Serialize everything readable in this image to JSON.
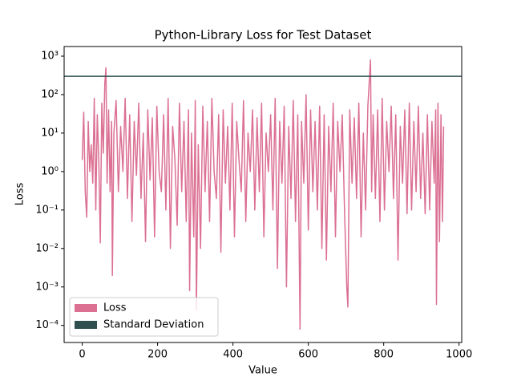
{
  "chart_data": {
    "type": "line",
    "title": "Python-Library Loss for Test Dataset",
    "x_label": "Value",
    "y_label": "Loss",
    "log_y": true,
    "xlim": [
      -48,
      1007
    ],
    "xticks": [
      0,
      200,
      400,
      600,
      800,
      1000
    ],
    "ylim": [
      3.6e-05,
      1780
    ],
    "yticks": [
      {
        "value": 0.0001,
        "label": "10⁻⁴"
      },
      {
        "value": 0.001,
        "label": "10⁻³"
      },
      {
        "value": 0.01,
        "label": "10⁻²"
      },
      {
        "value": 0.1,
        "label": "10⁻¹"
      },
      {
        "value": 1,
        "label": "10⁰"
      },
      {
        "value": 10,
        "label": "10¹"
      },
      {
        "value": 100,
        "label": "10²"
      },
      {
        "value": 1000,
        "label": "10³"
      }
    ],
    "legend": "lower left",
    "x": [
      0,
      4,
      8,
      12,
      16,
      20,
      24,
      28,
      32,
      36,
      40,
      44,
      48,
      52,
      56,
      60,
      63,
      66,
      70,
      74,
      78,
      80,
      84,
      90,
      96,
      102,
      108,
      114,
      120,
      126,
      132,
      138,
      144,
      150,
      156,
      162,
      168,
      174,
      180,
      186,
      192,
      198,
      204,
      210,
      216,
      222,
      228,
      234,
      240,
      246,
      252,
      258,
      264,
      270,
      276,
      282,
      285,
      290,
      296,
      300,
      303,
      308,
      314,
      320,
      326,
      332,
      338,
      344,
      350,
      356,
      362,
      368,
      374,
      380,
      386,
      392,
      398,
      404,
      410,
      416,
      422,
      428,
      434,
      440,
      446,
      452,
      458,
      464,
      470,
      476,
      482,
      488,
      494,
      500,
      506,
      512,
      518,
      524,
      530,
      536,
      542,
      548,
      554,
      560,
      566,
      572,
      578,
      582,
      588,
      594,
      600,
      606,
      612,
      618,
      624,
      630,
      636,
      642,
      648,
      654,
      660,
      666,
      672,
      678,
      684,
      690,
      696,
      702,
      705,
      710,
      716,
      722,
      728,
      734,
      740,
      746,
      752,
      758,
      765,
      768,
      772,
      778,
      784,
      790,
      796,
      802,
      808,
      814,
      820,
      826,
      832,
      838,
      844,
      850,
      856,
      862,
      868,
      874,
      880,
      886,
      892,
      898,
      904,
      910,
      916,
      922,
      928,
      934,
      938,
      940,
      944,
      948,
      952,
      956,
      959
    ],
    "series": [
      {
        "name": "Loss",
        "color": "#db7093",
        "values": [
          2,
          35,
          0.3,
          0.065,
          20,
          1,
          5,
          0.5,
          80,
          0.1,
          30,
          2,
          0.014,
          60,
          3,
          200,
          500,
          0.5,
          40,
          0.3,
          20,
          0.002,
          10,
          70,
          0.3,
          15,
          1,
          80,
          0.2,
          30,
          0.05,
          20,
          0.8,
          60,
          0.2,
          10,
          0.015,
          40,
          0.6,
          25,
          0.02,
          50,
          1,
          0.3,
          30,
          0.1,
          80,
          0.01,
          15,
          2,
          0.04,
          60,
          0.3,
          20,
          0.05,
          40,
          0.0008,
          10,
          0.02,
          70,
          0.00025,
          5,
          0.01,
          50,
          0.3,
          20,
          0.05,
          80,
          1,
          0.2,
          30,
          0.008,
          40,
          0.5,
          15,
          0.1,
          60,
          0.02,
          20,
          2,
          0.3,
          70,
          0.05,
          10,
          1,
          40,
          0.1,
          25,
          0.3,
          60,
          0.02,
          10,
          1,
          30,
          0.1,
          80,
          0.003,
          20,
          0.5,
          50,
          0.001,
          15,
          0.2,
          70,
          0.05,
          30,
          8e-05,
          20,
          0.5,
          100,
          0.03,
          40,
          0.3,
          20,
          0.1,
          50,
          0.01,
          30,
          0.005,
          15,
          0.3,
          60,
          0.02,
          20,
          1,
          30,
          0.1,
          0.001,
          0.0003,
          40,
          0.5,
          25,
          0.2,
          60,
          0.02,
          10,
          0.1,
          50,
          800,
          0.3,
          30,
          0.2,
          40,
          0.05,
          80,
          0.1,
          20,
          1,
          50,
          0.2,
          30,
          0.005,
          15,
          0.5,
          40,
          0.08,
          60,
          0.1,
          20,
          0.3,
          50,
          0.2,
          10,
          0.08,
          30,
          0.1,
          20,
          0.5,
          40,
          0.00035,
          60,
          0.015,
          30,
          0.05,
          15
        ]
      }
    ],
    "reference_lines": [
      {
        "name": "Standard Deviation",
        "value": 300,
        "color": "#2f4f4f"
      }
    ]
  }
}
